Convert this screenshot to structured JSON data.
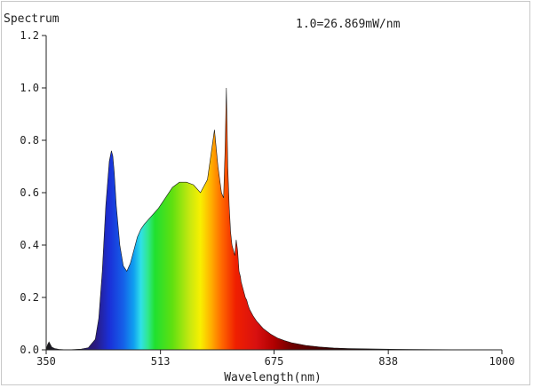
{
  "chart_data": {
    "type": "area",
    "title": "Spectrum",
    "annotation": "1.0=26.869mW/nm",
    "xlabel": "Wavelength(nm)",
    "ylabel": "",
    "xlim": [
      350,
      1000
    ],
    "ylim": [
      0,
      1.2
    ],
    "x_ticks": [
      "350",
      "513",
      "675",
      "838",
      "1000"
    ],
    "y_ticks": [
      "0.0",
      "0.2",
      "0.4",
      "0.6",
      "0.8",
      "1.0",
      "1.2"
    ],
    "grid": false,
    "fill": "visible-spectrum-gradient",
    "series": [
      {
        "x": [
          350,
          352,
          354,
          356,
          358,
          362,
          368,
          380,
          400,
          410,
          420,
          425,
          430,
          435,
          440,
          443,
          445,
          447,
          450,
          455,
          460,
          465,
          470,
          475,
          480,
          485,
          490,
          500,
          510,
          520,
          530,
          540,
          550,
          560,
          570,
          580,
          590,
          595,
          600,
          603,
          605,
          607,
          609,
          611,
          613,
          615,
          617,
          619,
          621,
          623,
          625,
          627,
          628,
          630,
          632,
          634,
          636,
          638,
          640,
          645,
          650,
          660,
          670,
          680,
          690,
          700,
          720,
          740,
          760,
          780,
          800,
          850,
          900,
          950,
          1000
        ],
        "values": [
          0.0,
          0.02,
          0.03,
          0.02,
          0.01,
          0.005,
          0.002,
          0.0,
          0.003,
          0.008,
          0.04,
          0.12,
          0.3,
          0.55,
          0.72,
          0.76,
          0.74,
          0.68,
          0.55,
          0.4,
          0.32,
          0.3,
          0.33,
          0.38,
          0.43,
          0.46,
          0.48,
          0.51,
          0.54,
          0.58,
          0.62,
          0.64,
          0.64,
          0.63,
          0.6,
          0.65,
          0.84,
          0.7,
          0.6,
          0.58,
          0.75,
          1.0,
          0.7,
          0.55,
          0.45,
          0.4,
          0.38,
          0.36,
          0.42,
          0.38,
          0.3,
          0.28,
          0.26,
          0.24,
          0.22,
          0.2,
          0.19,
          0.17,
          0.155,
          0.13,
          0.11,
          0.08,
          0.06,
          0.045,
          0.035,
          0.027,
          0.017,
          0.011,
          0.007,
          0.005,
          0.004,
          0.002,
          0.001,
          0.0005,
          0.0
        ]
      }
    ]
  }
}
